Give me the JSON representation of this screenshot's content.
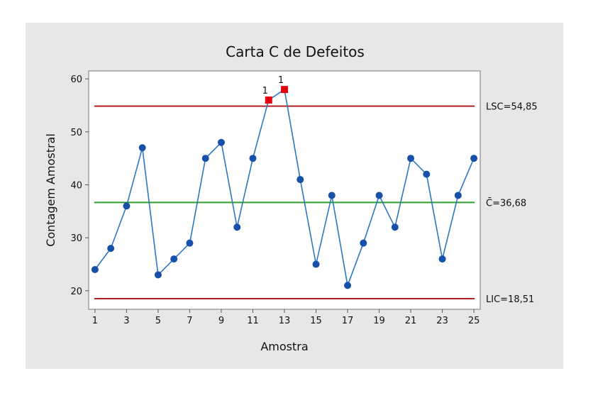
{
  "chart_data": {
    "type": "line",
    "title": "Carta C de Defeitos",
    "xlabel": "Amostra",
    "ylabel": "Contagem Amostral",
    "x": [
      1,
      2,
      3,
      4,
      5,
      6,
      7,
      8,
      9,
      10,
      11,
      12,
      13,
      14,
      15,
      16,
      17,
      18,
      19,
      20,
      21,
      22,
      23,
      24,
      25
    ],
    "xticks": [
      "1",
      "3",
      "5",
      "7",
      "9",
      "11",
      "13",
      "15",
      "17",
      "19",
      "21",
      "23",
      "25"
    ],
    "yticks": [
      "20",
      "30",
      "40",
      "50",
      "60"
    ],
    "xlim": [
      0.6,
      25.4
    ],
    "ylim": [
      16.5,
      61.5
    ],
    "series": [
      {
        "values": [
          24,
          28,
          36,
          47,
          23,
          26,
          29,
          45,
          48,
          32,
          45,
          56,
          58,
          41,
          25,
          38,
          21,
          29,
          38,
          32,
          45,
          42,
          26,
          38,
          45
        ]
      }
    ],
    "out_of_control": [
      12,
      13
    ],
    "flag_label": "1",
    "limits": {
      "ucl": {
        "value": 54.85,
        "label": "LSC=54,85",
        "color": "#b22222"
      },
      "center": {
        "value": 36.68,
        "label": "C̄=36,68",
        "color": "#2ca02c"
      },
      "lcl": {
        "value": 18.51,
        "label": "LIC=18,51",
        "color": "#b22222"
      }
    },
    "colors": {
      "line": "#2a78c4",
      "point": "#1650a8",
      "flagged": "#e3000f",
      "background": "#e7e7e7",
      "plot_area": "#ffffff"
    },
    "grid": false,
    "legend": "none"
  }
}
